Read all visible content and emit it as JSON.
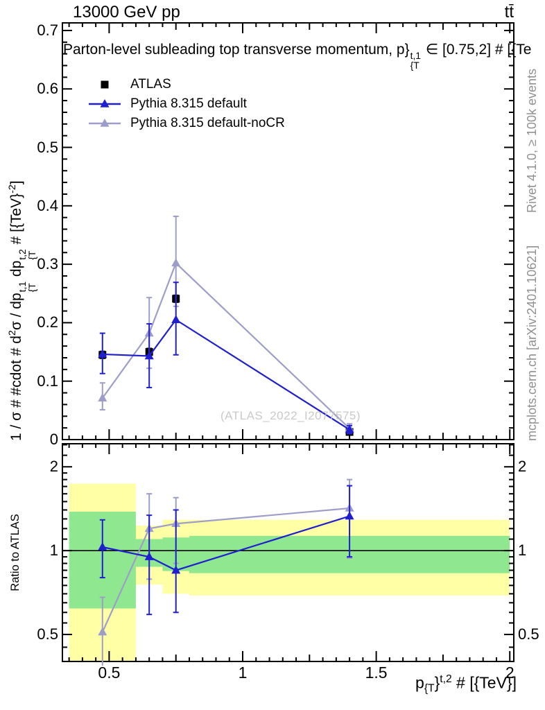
{
  "header": {
    "left_label": "13000 GeV pp",
    "right_label": "tt̄"
  },
  "side_notes": {
    "rivet": "Rivet 4.1.0, ≥ 100k events",
    "mcplots": "mcplots.cern.ch [arXiv:2401.10621]"
  },
  "watermark": "(ATLAS_2022_I2077575)",
  "labels": {
    "plot_title": [
      {
        "t": "Parton-level subleading top transverse momentum, p}"
      },
      {
        "stack": {
          "sup": "t,1",
          "sub": "{T"
        }
      },
      {
        "t": " ∈ [0.75,2] # [{Te"
      }
    ],
    "y_main": [
      {
        "t": "1 / σ # #cdot # d"
      },
      {
        "sup": "2"
      },
      {
        "t": "σ / dp"
      },
      {
        "stack": {
          "sup": "t,1",
          "sub": "{T"
        }
      },
      {
        "t": " dp"
      },
      {
        "stack": {
          "sup": "t,2",
          "sub": "{T"
        }
      },
      {
        "t": " # [{TeV}"
      },
      {
        "sup": "-2"
      },
      {
        "t": "]"
      }
    ],
    "y_ratio": "Ratio to ATLAS",
    "x_axis": [
      {
        "t": "p"
      },
      {
        "sub": "{T"
      },
      {
        "t": "}"
      },
      {
        "sup": "t,2"
      },
      {
        "t": " # [{TeV}]"
      }
    ]
  },
  "colors": {
    "atlas": "#000000",
    "pythia_default": "#1f1fcf",
    "pythia_nocr": "#9d9dc9",
    "band_green": "#8fe88f",
    "band_yellow": "#ffffa6",
    "note_gray": "#909090",
    "watermark_gray": "#c9c9c9",
    "frame": "#000000"
  },
  "chart_data": {
    "type": "line",
    "x": {
      "lim": [
        0.325,
        2.015
      ],
      "major_ticks": [
        0.5,
        1,
        1.5,
        2
      ],
      "tick_labels": [
        "0.5",
        "1",
        "1.5",
        "2"
      ],
      "minor_step": 0.05,
      "medium_step": 0.25,
      "bin_edges": [
        0.35,
        0.6,
        0.7,
        0.8,
        2.0
      ],
      "centers": [
        0.475,
        0.65,
        0.75,
        1.4
      ]
    },
    "main_panel": {
      "ylim": [
        0,
        0.713
      ],
      "major_step": 0.1,
      "minor_step": 0.02,
      "tick_values": [
        0,
        0.1,
        0.2,
        0.3,
        0.4,
        0.5,
        0.6,
        0.7
      ],
      "tick_labels": [
        "0",
        "0.1",
        "0.2",
        "0.3",
        "0.4",
        "0.5",
        "0.6",
        "0.7"
      ],
      "series": [
        {
          "name": "ATLAS",
          "marker": "square",
          "color_key": "atlas",
          "show_line": false,
          "y": [
            0.145,
            0.15,
            0.241,
            0.013
          ],
          "err_up": [
            0.006,
            0.006,
            0.006,
            0.003
          ],
          "err_dn": [
            0.006,
            0.006,
            0.006,
            0.003
          ]
        },
        {
          "name": "Pythia 8.315 default",
          "marker": "triangle",
          "color_key": "pythia_default",
          "show_line": true,
          "y": [
            0.146,
            0.143,
            0.205,
            0.017
          ],
          "err_up": [
            0.036,
            0.055,
            0.064,
            0.007
          ],
          "err_dn": [
            0.033,
            0.054,
            0.06,
            0.007
          ]
        },
        {
          "name": "Pythia 8.315 default-noCR",
          "marker": "triangle",
          "color_key": "pythia_nocr",
          "show_line": true,
          "y": [
            0.071,
            0.182,
            0.302,
            0.019
          ],
          "err_up": [
            0.026,
            0.061,
            0.08,
            0.008
          ],
          "err_dn": [
            0.02,
            0.06,
            0.074,
            0.008
          ]
        }
      ]
    },
    "ratio_panel": {
      "yscale": "log2",
      "ylim": [
        0.4,
        2.42
      ],
      "major_ticks": [
        0.5,
        1,
        2
      ],
      "tick_labels": [
        "0.5",
        "1",
        "2"
      ],
      "minor_ticks": [
        0.45,
        0.55,
        0.6,
        0.65,
        0.7,
        0.75,
        0.8,
        0.85,
        0.9,
        0.95,
        1.1,
        1.2,
        1.3,
        1.4,
        1.5,
        1.6,
        1.7,
        1.8,
        1.9,
        2.2,
        2.4
      ],
      "reference_y": 1,
      "bands": {
        "yellow": [
          [
            0.4,
            1.74
          ],
          [
            0.755,
            1.23
          ],
          [
            0.7,
            1.29
          ],
          [
            0.69,
            1.29
          ]
        ],
        "green": [
          [
            0.62,
            1.38
          ],
          [
            0.875,
            1.1
          ],
          [
            0.845,
            1.115
          ],
          [
            0.83,
            1.13
          ]
        ]
      },
      "series": [
        {
          "name": "Pythia 8.315 default",
          "marker": "triangle",
          "color_key": "pythia_default",
          "show_line": true,
          "y": [
            1.03,
            0.95,
            0.85,
            1.33
          ],
          "err_up": [
            0.26,
            0.39,
            0.55,
            0.38
          ],
          "err_dn": [
            0.23,
            0.36,
            0.25,
            0.38
          ]
        },
        {
          "name": "Pythia 8.315 default-noCR",
          "marker": "triangle",
          "color_key": "pythia_nocr",
          "show_line": true,
          "y": [
            0.51,
            1.2,
            1.25,
            1.42
          ],
          "err_up": [
            0.17,
            0.4,
            0.3,
            0.38
          ],
          "err_dn": [
            0.15,
            0.41,
            0.35,
            0.48
          ]
        }
      ]
    }
  }
}
